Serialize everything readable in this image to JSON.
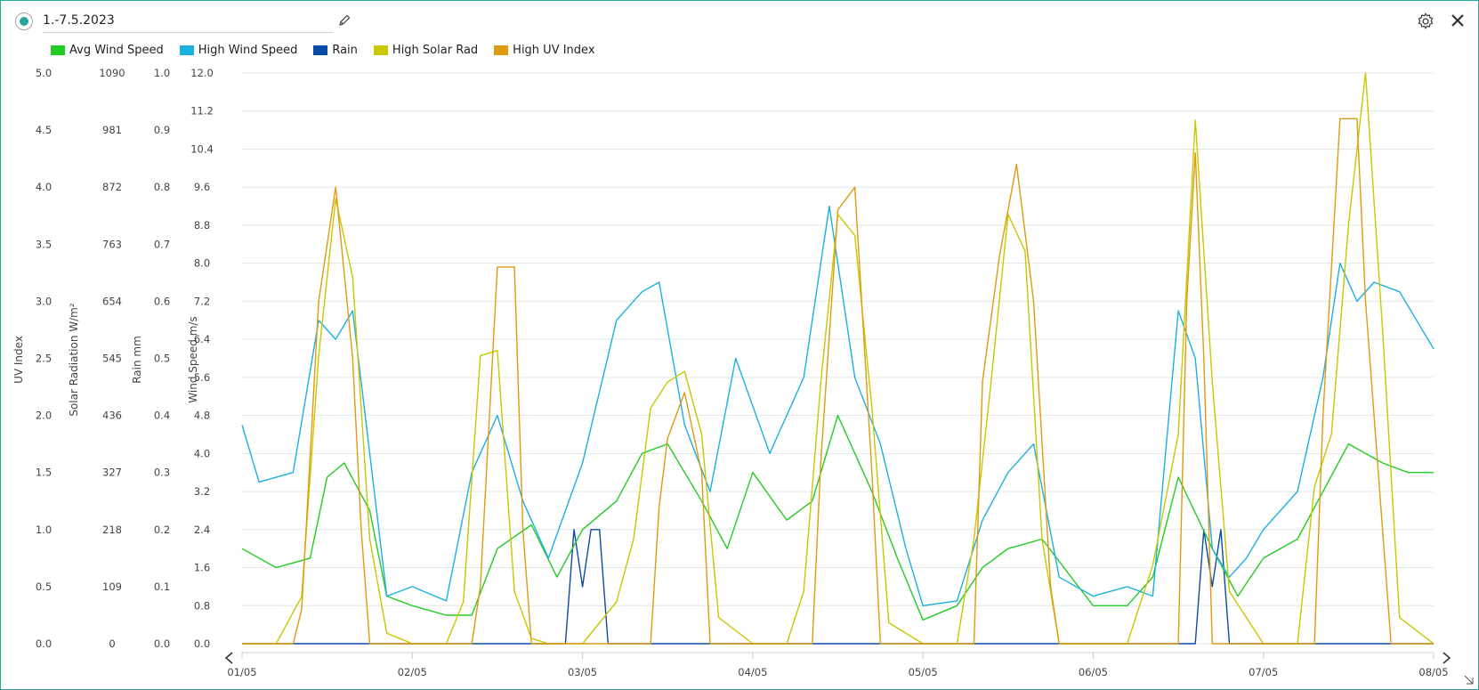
{
  "header": {
    "title": "1.-7.5.2023",
    "icons": [
      "edit-icon",
      "gear-icon",
      "close-icon"
    ]
  },
  "legend": [
    {
      "label": "Avg Wind Speed",
      "color": "#22cc22"
    },
    {
      "label": "High Wind Speed",
      "color": "#1ab0e0"
    },
    {
      "label": "Rain",
      "color": "#0a4aa8"
    },
    {
      "label": "High Solar Rad",
      "color": "#c8c800"
    },
    {
      "label": "High UV Index",
      "color": "#e09a10"
    }
  ],
  "axes": {
    "uv": {
      "title": "UV Index",
      "ticks": [
        "0.0",
        "0.5",
        "1.0",
        "1.5",
        "2.0",
        "2.5",
        "3.0",
        "3.5",
        "4.0",
        "4.5",
        "5.0"
      ]
    },
    "solar": {
      "title": "Solar Radiation W/m²",
      "ticks": [
        "0",
        "109",
        "218",
        "327",
        "436",
        "545",
        "654",
        "763",
        "872",
        "981",
        "1090"
      ]
    },
    "rain": {
      "title": "Rain mm",
      "ticks": [
        "0.0",
        "0.1",
        "0.2",
        "0.3",
        "0.4",
        "0.5",
        "0.6",
        "0.7",
        "0.8",
        "0.9",
        "1.0"
      ]
    },
    "wind": {
      "title": "Wind Speed m/s",
      "ticks": [
        "0.0",
        "0.8",
        "1.6",
        "2.4",
        "3.2",
        "4.0",
        "4.8",
        "5.6",
        "6.4",
        "7.2",
        "8.0",
        "8.8",
        "9.6",
        "10.4",
        "11.2",
        "12.0"
      ]
    },
    "x": {
      "ticks": [
        "01/05",
        "02/05",
        "03/05",
        "04/05",
        "05/05",
        "06/05",
        "07/05",
        "08/05"
      ]
    }
  },
  "chart_data": {
    "type": "line",
    "x_unit": "day of May 2023",
    "xlim": [
      1,
      8
    ],
    "ylim_wind": [
      0,
      12
    ],
    "ylim_solar": [
      0,
      1090
    ],
    "ylim_rain": [
      0,
      1
    ],
    "ylim_uv": [
      0,
      5
    ],
    "series": [
      {
        "name": "Avg Wind Speed",
        "axis": "wind",
        "x": [
          1.0,
          1.2,
          1.4,
          1.5,
          1.6,
          1.75,
          1.85,
          2.0,
          2.2,
          2.35,
          2.5,
          2.7,
          2.85,
          3.0,
          3.2,
          3.35,
          3.5,
          3.7,
          3.85,
          4.0,
          4.2,
          4.35,
          4.5,
          4.7,
          4.85,
          5.0,
          5.2,
          5.35,
          5.5,
          5.7,
          5.85,
          6.0,
          6.2,
          6.35,
          6.5,
          6.7,
          6.85,
          7.0,
          7.2,
          7.35,
          7.5,
          7.7,
          7.85,
          8.0
        ],
        "y": [
          2.0,
          1.6,
          1.8,
          3.5,
          3.8,
          2.8,
          1.0,
          0.8,
          0.6,
          0.6,
          2.0,
          2.5,
          1.4,
          2.4,
          3.0,
          4.0,
          4.2,
          3.0,
          2.0,
          3.6,
          2.6,
          3.0,
          4.8,
          3.2,
          1.8,
          0.5,
          0.8,
          1.6,
          2.0,
          2.2,
          1.5,
          0.8,
          0.8,
          1.4,
          3.5,
          2.0,
          1.0,
          1.8,
          2.2,
          3.2,
          4.2,
          3.8,
          3.6,
          3.6
        ]
      },
      {
        "name": "High Wind Speed",
        "axis": "wind",
        "x": [
          1.0,
          1.1,
          1.3,
          1.45,
          1.55,
          1.65,
          1.75,
          1.85,
          2.0,
          2.2,
          2.35,
          2.5,
          2.65,
          2.8,
          3.0,
          3.2,
          3.35,
          3.45,
          3.6,
          3.75,
          3.9,
          4.1,
          4.3,
          4.45,
          4.6,
          4.75,
          4.9,
          5.0,
          5.2,
          5.35,
          5.5,
          5.65,
          5.8,
          6.0,
          6.2,
          6.35,
          6.5,
          6.6,
          6.7,
          6.8,
          6.9,
          7.0,
          7.2,
          7.35,
          7.45,
          7.55,
          7.65,
          7.8,
          8.0
        ],
        "y": [
          4.6,
          3.4,
          3.6,
          6.8,
          6.4,
          7.0,
          4.0,
          1.0,
          1.2,
          0.9,
          3.6,
          4.8,
          3.0,
          1.8,
          3.8,
          6.8,
          7.4,
          7.6,
          4.6,
          3.2,
          6.0,
          4.0,
          5.6,
          9.2,
          5.6,
          4.2,
          2.0,
          0.8,
          0.9,
          2.6,
          3.6,
          4.2,
          1.4,
          1.0,
          1.2,
          1.0,
          7.0,
          6.0,
          2.0,
          1.4,
          1.8,
          2.4,
          3.2,
          5.6,
          8.0,
          7.2,
          7.6,
          7.4,
          6.2
        ]
      },
      {
        "name": "Rain",
        "axis": "rain",
        "x": [
          1.0,
          2.9,
          2.95,
          3.0,
          3.05,
          3.1,
          3.15,
          6.6,
          6.65,
          6.7,
          6.75,
          6.8,
          7.0,
          8.0
        ],
        "y": [
          0,
          0,
          0.2,
          0.1,
          0.2,
          0.2,
          0,
          0,
          0.2,
          0.1,
          0.2,
          0,
          0,
          0
        ]
      },
      {
        "name": "High Solar Rad",
        "axis": "solar",
        "x": [
          1.0,
          1.2,
          1.35,
          1.45,
          1.55,
          1.65,
          1.75,
          1.85,
          2.0,
          2.2,
          2.3,
          2.4,
          2.5,
          2.6,
          2.7,
          2.8,
          3.0,
          3.2,
          3.3,
          3.4,
          3.5,
          3.6,
          3.7,
          3.8,
          4.0,
          4.2,
          4.3,
          4.4,
          4.5,
          4.6,
          4.7,
          4.8,
          5.0,
          5.2,
          5.3,
          5.4,
          5.5,
          5.6,
          5.7,
          5.8,
          6.0,
          6.2,
          6.35,
          6.5,
          6.6,
          6.7,
          6.8,
          7.0,
          7.2,
          7.3,
          7.4,
          7.5,
          7.6,
          7.7,
          7.8,
          8.0
        ],
        "y": [
          0,
          0,
          90,
          550,
          850,
          700,
          200,
          20,
          0,
          0,
          80,
          550,
          560,
          100,
          10,
          0,
          0,
          80,
          200,
          450,
          500,
          520,
          400,
          50,
          0,
          0,
          100,
          500,
          820,
          780,
          450,
          40,
          0,
          0,
          200,
          500,
          820,
          750,
          200,
          0,
          0,
          0,
          150,
          400,
          1000,
          500,
          100,
          0,
          0,
          300,
          400,
          800,
          1090,
          600,
          50,
          0
        ]
      },
      {
        "name": "High UV Index",
        "axis": "uv",
        "x": [
          1.0,
          1.3,
          1.35,
          1.45,
          1.55,
          1.65,
          1.7,
          1.75,
          2.0,
          2.35,
          2.4,
          2.5,
          2.6,
          2.65,
          2.7,
          3.0,
          3.4,
          3.45,
          3.5,
          3.6,
          3.7,
          3.75,
          4.0,
          4.35,
          4.4,
          4.5,
          4.6,
          4.7,
          4.75,
          5.0,
          5.3,
          5.35,
          5.45,
          5.55,
          5.65,
          5.75,
          5.8,
          6.0,
          6.5,
          6.55,
          6.6,
          6.65,
          6.7,
          7.0,
          7.3,
          7.35,
          7.45,
          7.55,
          7.6,
          7.7,
          7.75,
          8.0
        ],
        "y": [
          0,
          0,
          0.3,
          3.0,
          4.0,
          2.5,
          1.0,
          0,
          0,
          0,
          0.5,
          3.3,
          3.3,
          1.0,
          0,
          0,
          0,
          1.2,
          1.8,
          2.2,
          1.5,
          0,
          0,
          0,
          1.6,
          3.8,
          4.0,
          1.5,
          0,
          0,
          0,
          2.3,
          3.4,
          4.2,
          3.0,
          0.5,
          0,
          0,
          0,
          3.0,
          4.3,
          2.5,
          0,
          0,
          0,
          2.0,
          4.6,
          4.6,
          3.0,
          1.0,
          0,
          0
        ]
      }
    ]
  }
}
